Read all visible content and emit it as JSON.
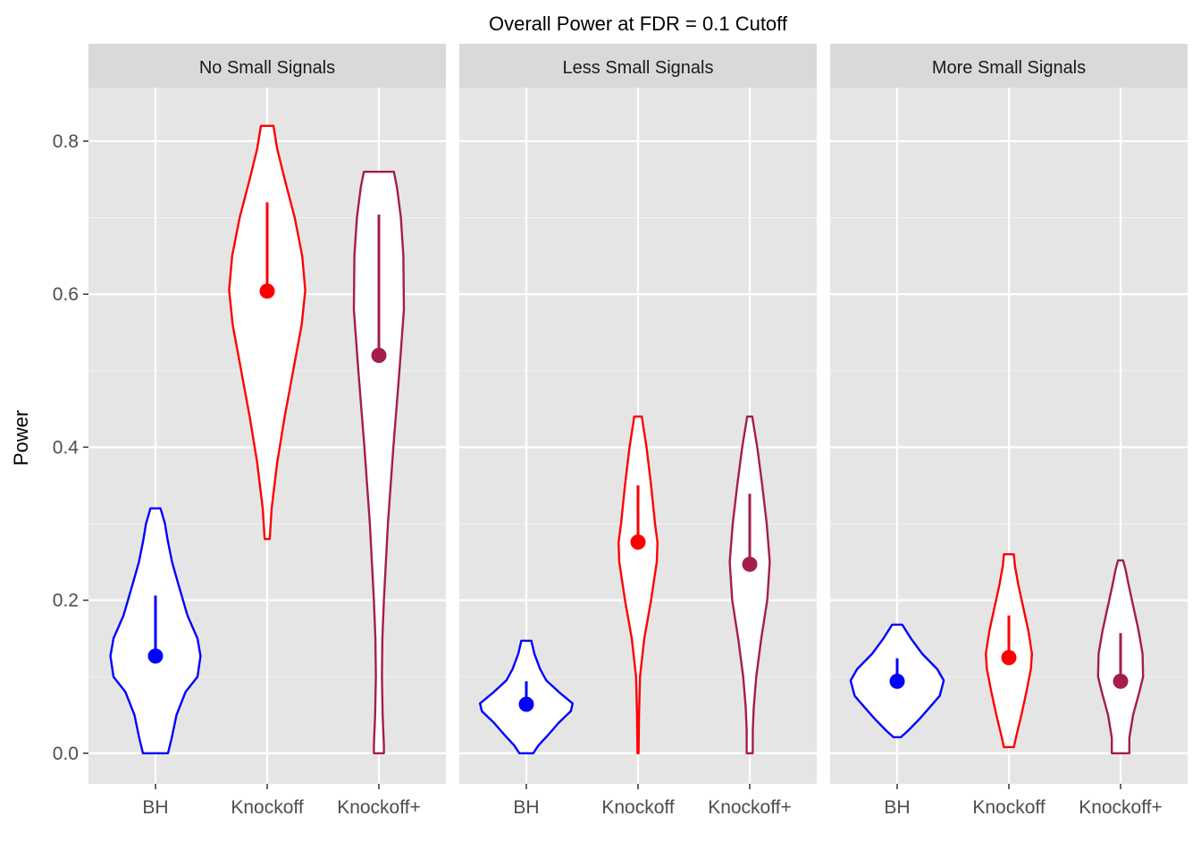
{
  "chart_data": {
    "type": "violin",
    "title": "Overall Power at FDR = 0.1 Cutoff",
    "xlabel": "",
    "ylabel": "Power",
    "ylim": [
      -0.04,
      0.87
    ],
    "yticks": [
      0.0,
      0.2,
      0.4,
      0.6,
      0.8
    ],
    "ytick_labels": [
      "0.0",
      "0.2",
      "0.4",
      "0.6",
      "0.8"
    ],
    "categories": [
      "BH",
      "Knockoff",
      "Knockoff+"
    ],
    "grid": true,
    "colors": {
      "BH": "#0000ff",
      "Knockoff": "#ff0000",
      "Knockoff+": "#a51d4d"
    },
    "panels": [
      {
        "name": "No Small Signals",
        "groups": [
          {
            "method": "BH",
            "mean": 0.127,
            "upper": 0.206,
            "violin_range": [
              0.0,
              0.32
            ],
            "profile": [
              [
                0.0,
                0.05
              ],
              [
                0.02,
                0.065
              ],
              [
                0.05,
                0.084
              ],
              [
                0.08,
                0.12
              ],
              [
                0.1,
                0.168
              ],
              [
                0.127,
                0.18
              ],
              [
                0.15,
                0.168
              ],
              [
                0.18,
                0.128
              ],
              [
                0.22,
                0.092
              ],
              [
                0.25,
                0.066
              ],
              [
                0.28,
                0.048
              ],
              [
                0.3,
                0.038
              ],
              [
                0.32,
                0.02
              ]
            ]
          },
          {
            "method": "Knockoff",
            "mean": 0.604,
            "upper": 0.72,
            "violin_range": [
              0.28,
              0.82
            ],
            "profile": [
              [
                0.28,
                0.01
              ],
              [
                0.32,
                0.018
              ],
              [
                0.38,
                0.04
              ],
              [
                0.44,
                0.07
              ],
              [
                0.5,
                0.104
              ],
              [
                0.56,
                0.138
              ],
              [
                0.605,
                0.152
              ],
              [
                0.65,
                0.14
              ],
              [
                0.7,
                0.11
              ],
              [
                0.75,
                0.07
              ],
              [
                0.79,
                0.04
              ],
              [
                0.82,
                0.025
              ]
            ]
          },
          {
            "method": "Knockoff+",
            "mean": 0.52,
            "upper": 0.704,
            "violin_range": [
              0.0,
              0.76
            ],
            "profile": [
              [
                0.0,
                0.02
              ],
              [
                0.01,
                0.02
              ],
              [
                0.05,
                0.015
              ],
              [
                0.1,
                0.012
              ],
              [
                0.15,
                0.014
              ],
              [
                0.2,
                0.02
              ],
              [
                0.3,
                0.036
              ],
              [
                0.4,
                0.058
              ],
              [
                0.5,
                0.082
              ],
              [
                0.58,
                0.1
              ],
              [
                0.65,
                0.098
              ],
              [
                0.7,
                0.088
              ],
              [
                0.74,
                0.072
              ],
              [
                0.76,
                0.06
              ]
            ]
          }
        ]
      },
      {
        "name": "Less Small Signals",
        "groups": [
          {
            "method": "BH",
            "mean": 0.064,
            "upper": 0.094,
            "violin_range": [
              0.0,
              0.147
            ],
            "profile": [
              [
                0.0,
                0.028
              ],
              [
                0.01,
                0.048
              ],
              [
                0.025,
                0.09
              ],
              [
                0.04,
                0.13
              ],
              [
                0.055,
                0.178
              ],
              [
                0.065,
                0.185
              ],
              [
                0.08,
                0.13
              ],
              [
                0.095,
                0.08
              ],
              [
                0.11,
                0.055
              ],
              [
                0.13,
                0.032
              ],
              [
                0.147,
                0.02
              ]
            ]
          },
          {
            "method": "Knockoff",
            "mean": 0.276,
            "upper": 0.35,
            "violin_range": [
              0.0,
              0.44
            ],
            "profile": [
              [
                0.0,
                0.002
              ],
              [
                0.05,
                0.004
              ],
              [
                0.1,
                0.008
              ],
              [
                0.15,
                0.025
              ],
              [
                0.2,
                0.052
              ],
              [
                0.25,
                0.075
              ],
              [
                0.275,
                0.078
              ],
              [
                0.3,
                0.068
              ],
              [
                0.35,
                0.052
              ],
              [
                0.4,
                0.034
              ],
              [
                0.44,
                0.015
              ]
            ]
          },
          {
            "method": "Knockoff+",
            "mean": 0.247,
            "upper": 0.339,
            "violin_range": [
              0.0,
              0.44
            ],
            "profile": [
              [
                0.0,
                0.012
              ],
              [
                0.03,
                0.012
              ],
              [
                0.06,
                0.016
              ],
              [
                0.1,
                0.026
              ],
              [
                0.15,
                0.046
              ],
              [
                0.2,
                0.07
              ],
              [
                0.25,
                0.08
              ],
              [
                0.3,
                0.068
              ],
              [
                0.35,
                0.05
              ],
              [
                0.4,
                0.03
              ],
              [
                0.44,
                0.01
              ]
            ]
          }
        ]
      },
      {
        "name": "More Small Signals",
        "groups": [
          {
            "method": "BH",
            "mean": 0.094,
            "upper": 0.124,
            "violin_range": [
              0.021,
              0.168
            ],
            "profile": [
              [
                0.021,
                0.015
              ],
              [
                0.03,
                0.045
              ],
              [
                0.045,
                0.09
              ],
              [
                0.06,
                0.13
              ],
              [
                0.075,
                0.17
              ],
              [
                0.095,
                0.186
              ],
              [
                0.11,
                0.16
              ],
              [
                0.13,
                0.1
              ],
              [
                0.15,
                0.055
              ],
              [
                0.168,
                0.02
              ]
            ]
          },
          {
            "method": "Knockoff",
            "mean": 0.125,
            "upper": 0.18,
            "violin_range": [
              0.008,
              0.26
            ],
            "profile": [
              [
                0.008,
                0.02
              ],
              [
                0.02,
                0.028
              ],
              [
                0.05,
                0.05
              ],
              [
                0.08,
                0.07
              ],
              [
                0.11,
                0.088
              ],
              [
                0.13,
                0.092
              ],
              [
                0.16,
                0.078
              ],
              [
                0.19,
                0.058
              ],
              [
                0.22,
                0.038
              ],
              [
                0.245,
                0.024
              ],
              [
                0.26,
                0.02
              ]
            ]
          },
          {
            "method": "Knockoff+",
            "mean": 0.094,
            "upper": 0.157,
            "violin_range": [
              0.0,
              0.252
            ],
            "profile": [
              [
                0.0,
                0.035
              ],
              [
                0.02,
                0.035
              ],
              [
                0.05,
                0.05
              ],
              [
                0.08,
                0.075
              ],
              [
                0.1,
                0.09
              ],
              [
                0.13,
                0.088
              ],
              [
                0.16,
                0.072
              ],
              [
                0.19,
                0.052
              ],
              [
                0.22,
                0.032
              ],
              [
                0.24,
                0.02
              ],
              [
                0.252,
                0.01
              ]
            ]
          }
        ]
      }
    ]
  }
}
